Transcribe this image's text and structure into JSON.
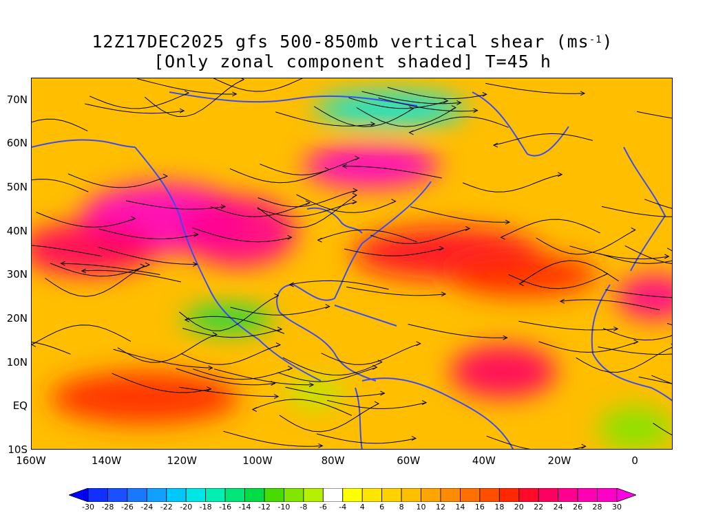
{
  "title": {
    "line1_prefix": "12Z17DEC2025 gfs 500-850mb vertical shear (ms",
    "line1_sup": "-1",
    "line1_suffix": ")",
    "line2": "[Only zonal component shaded] T=45 h"
  },
  "map": {
    "lon_range": [
      -160,
      10
    ],
    "lat_range": [
      -10,
      75
    ],
    "lat_ticks": [
      {
        "value": 70,
        "label": "70N"
      },
      {
        "value": 60,
        "label": "60N"
      },
      {
        "value": 50,
        "label": "50N"
      },
      {
        "value": 40,
        "label": "40N"
      },
      {
        "value": 30,
        "label": "30N"
      },
      {
        "value": 20,
        "label": "20N"
      },
      {
        "value": 10,
        "label": "10N"
      },
      {
        "value": 0,
        "label": "EQ"
      },
      {
        "value": -10,
        "label": "10S"
      }
    ],
    "lon_ticks": [
      {
        "value": -160,
        "label": "160W"
      },
      {
        "value": -140,
        "label": "140W"
      },
      {
        "value": -120,
        "label": "120W"
      },
      {
        "value": -100,
        "label": "100W"
      },
      {
        "value": -80,
        "label": "80W"
      },
      {
        "value": -60,
        "label": "60W"
      },
      {
        "value": -40,
        "label": "40W"
      },
      {
        "value": -20,
        "label": "20W"
      },
      {
        "value": 0,
        "label": "0"
      }
    ],
    "coastline_color": "#3a4cf0",
    "streamline_color": "#000000"
  },
  "colorbar": {
    "levels": [
      -30,
      -28,
      -26,
      -24,
      -22,
      -20,
      -18,
      -16,
      -14,
      -12,
      -10,
      -8,
      -6,
      -4,
      4,
      6,
      8,
      10,
      12,
      14,
      16,
      18,
      20,
      22,
      24,
      26,
      28,
      30
    ],
    "labels": [
      "-30",
      "-28",
      "-26",
      "-24",
      "-22",
      "-20",
      "-18",
      "-16",
      "-14",
      "-12",
      "-10",
      "-8",
      "-6",
      "-4",
      "4",
      "6",
      "8",
      "10",
      "12",
      "14",
      "16",
      "18",
      "20",
      "22",
      "24",
      "26",
      "28",
      "30"
    ],
    "colors": [
      "#0000ff",
      "#1030ff",
      "#1a50ff",
      "#1a78ff",
      "#10a0ff",
      "#00c8ff",
      "#00e6e6",
      "#00f0b4",
      "#00e678",
      "#00dc46",
      "#46dc00",
      "#82e600",
      "#b4f000",
      "#ffffff",
      "#ffff00",
      "#ffe600",
      "#ffd200",
      "#ffbe00",
      "#ffa500",
      "#ff8c00",
      "#ff7000",
      "#ff5000",
      "#ff2800",
      "#ff0a28",
      "#ff0060",
      "#ff0090",
      "#ff00b4",
      "#ff00c8",
      "#ff00e0"
    ]
  },
  "shear_regions": [
    {
      "name": "north-pacific-jet",
      "lon": -125,
      "lat": 43,
      "rx": 22,
      "ry": 8,
      "value": 28
    },
    {
      "name": "east-pacific-jet",
      "lon": -145,
      "lat": 36,
      "rx": 18,
      "ry": 6,
      "value": 22
    },
    {
      "name": "central-north-america",
      "lon": -105,
      "lat": 40,
      "rx": 15,
      "ry": 8,
      "value": 24
    },
    {
      "name": "eastern-canada-jet",
      "lon": -70,
      "lat": 55,
      "rx": 18,
      "ry": 5,
      "value": 28
    },
    {
      "name": "north-atlantic-jet",
      "lon": -50,
      "lat": 35,
      "rx": 25,
      "ry": 6,
      "value": 20
    },
    {
      "name": "subtropical-atlantic",
      "lon": -30,
      "lat": 30,
      "rx": 20,
      "ry": 5,
      "value": 18
    },
    {
      "name": "africa-jet",
      "lon": 5,
      "lat": 25,
      "rx": 10,
      "ry": 5,
      "value": 24
    },
    {
      "name": "tropical-atlantic",
      "lon": -35,
      "lat": 8,
      "rx": 14,
      "ry": 6,
      "value": 22
    },
    {
      "name": "east-pacific-equatorial",
      "lon": -130,
      "lat": 2,
      "rx": 25,
      "ry": 6,
      "value": 18
    },
    {
      "name": "mexico-easterly",
      "lon": -108,
      "lat": 20,
      "rx": 12,
      "ry": 3,
      "value": -14
    },
    {
      "name": "hudson-easterly",
      "lon": -65,
      "lat": 68,
      "rx": 20,
      "ry": 4,
      "value": -20
    },
    {
      "name": "south-atlantic-easterly",
      "lon": 0,
      "lat": -5,
      "rx": 10,
      "ry": 5,
      "value": -10
    },
    {
      "name": "central-america-easterly",
      "lon": -85,
      "lat": 3,
      "rx": 8,
      "ry": 3,
      "value": -8
    }
  ]
}
